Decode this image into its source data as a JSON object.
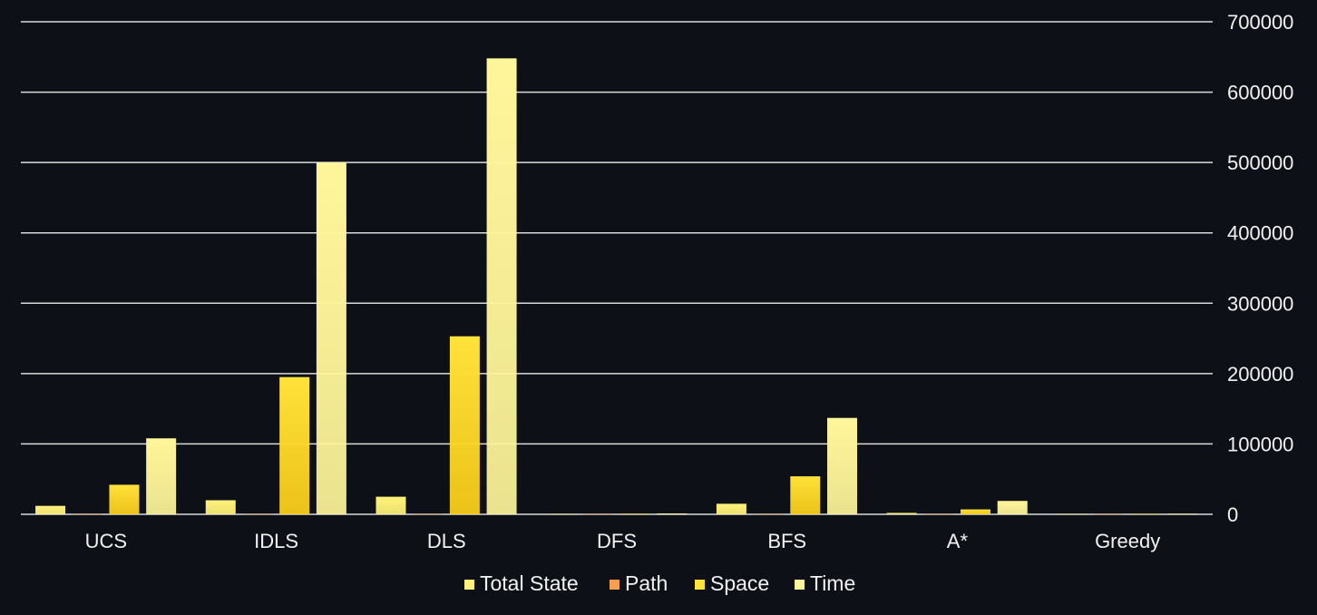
{
  "chart_data": {
    "type": "bar",
    "categories": [
      "UCS",
      "IDLS",
      "DLS",
      "DFS",
      "BFS",
      "A*",
      "Greedy"
    ],
    "series": [
      {
        "name": "Total State",
        "color": "#fff27a",
        "values": [
          12000,
          20000,
          25000,
          500,
          15000,
          2000,
          300
        ]
      },
      {
        "name": "Path",
        "color": "#f6a04d",
        "values": [
          100,
          200,
          300,
          100,
          100,
          100,
          100
        ]
      },
      {
        "name": "Space",
        "color": "#ffe23a",
        "values": [
          42000,
          195000,
          253000,
          800,
          54000,
          7000,
          600
        ]
      },
      {
        "name": "Time",
        "color": "#fff59a",
        "values": [
          108000,
          500000,
          648000,
          1200,
          137000,
          19000,
          800
        ]
      }
    ],
    "y_ticks": [
      "0",
      "100000",
      "200000",
      "300000",
      "400000",
      "500000",
      "600000",
      "700000"
    ],
    "ylim": [
      0,
      700000
    ],
    "y_axis_position": "right",
    "grid": true,
    "legend": "bottom"
  }
}
